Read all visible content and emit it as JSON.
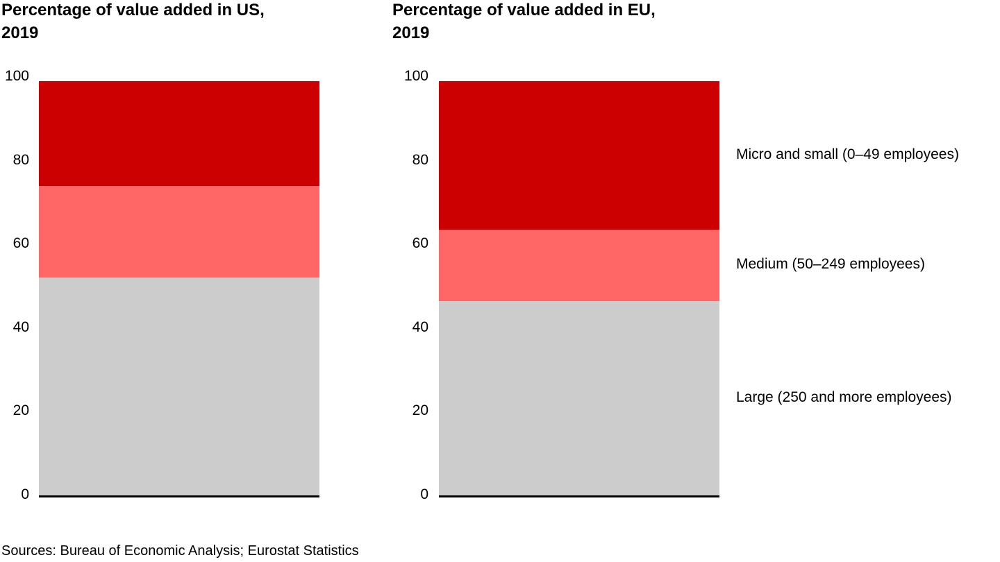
{
  "page": {
    "background": "#ffffff",
    "text_color": "#000000"
  },
  "source_note": "Sources: Bureau of Economic Analysis; Eurostat Statistics",
  "chart_data": {
    "type": "bar",
    "subtype": "stacked_vertical_columns",
    "unit": "percent",
    "grid": false,
    "legend_position": "right",
    "titles": [
      "Percentage of value added in US,\n2019",
      "Percentage of value added in EU,\n2019"
    ],
    "categories": [
      "US",
      "EU"
    ],
    "ylim": [
      0,
      100
    ],
    "y_ticks": [
      0,
      20,
      40,
      60,
      80,
      100
    ],
    "series": [
      {
        "key": "large",
        "name": "Large (250 and more employees)",
        "color": "#cccccc",
        "values": [
          52,
          46.5
        ]
      },
      {
        "key": "medium",
        "name": "Medium (50–249 employees)",
        "color": "#ff6666",
        "values": [
          22,
          17
        ]
      },
      {
        "key": "micro-small",
        "name": "Micro and small (0–49 employees)",
        "color": "#cc0000",
        "values": [
          25,
          35.5
        ]
      }
    ]
  }
}
